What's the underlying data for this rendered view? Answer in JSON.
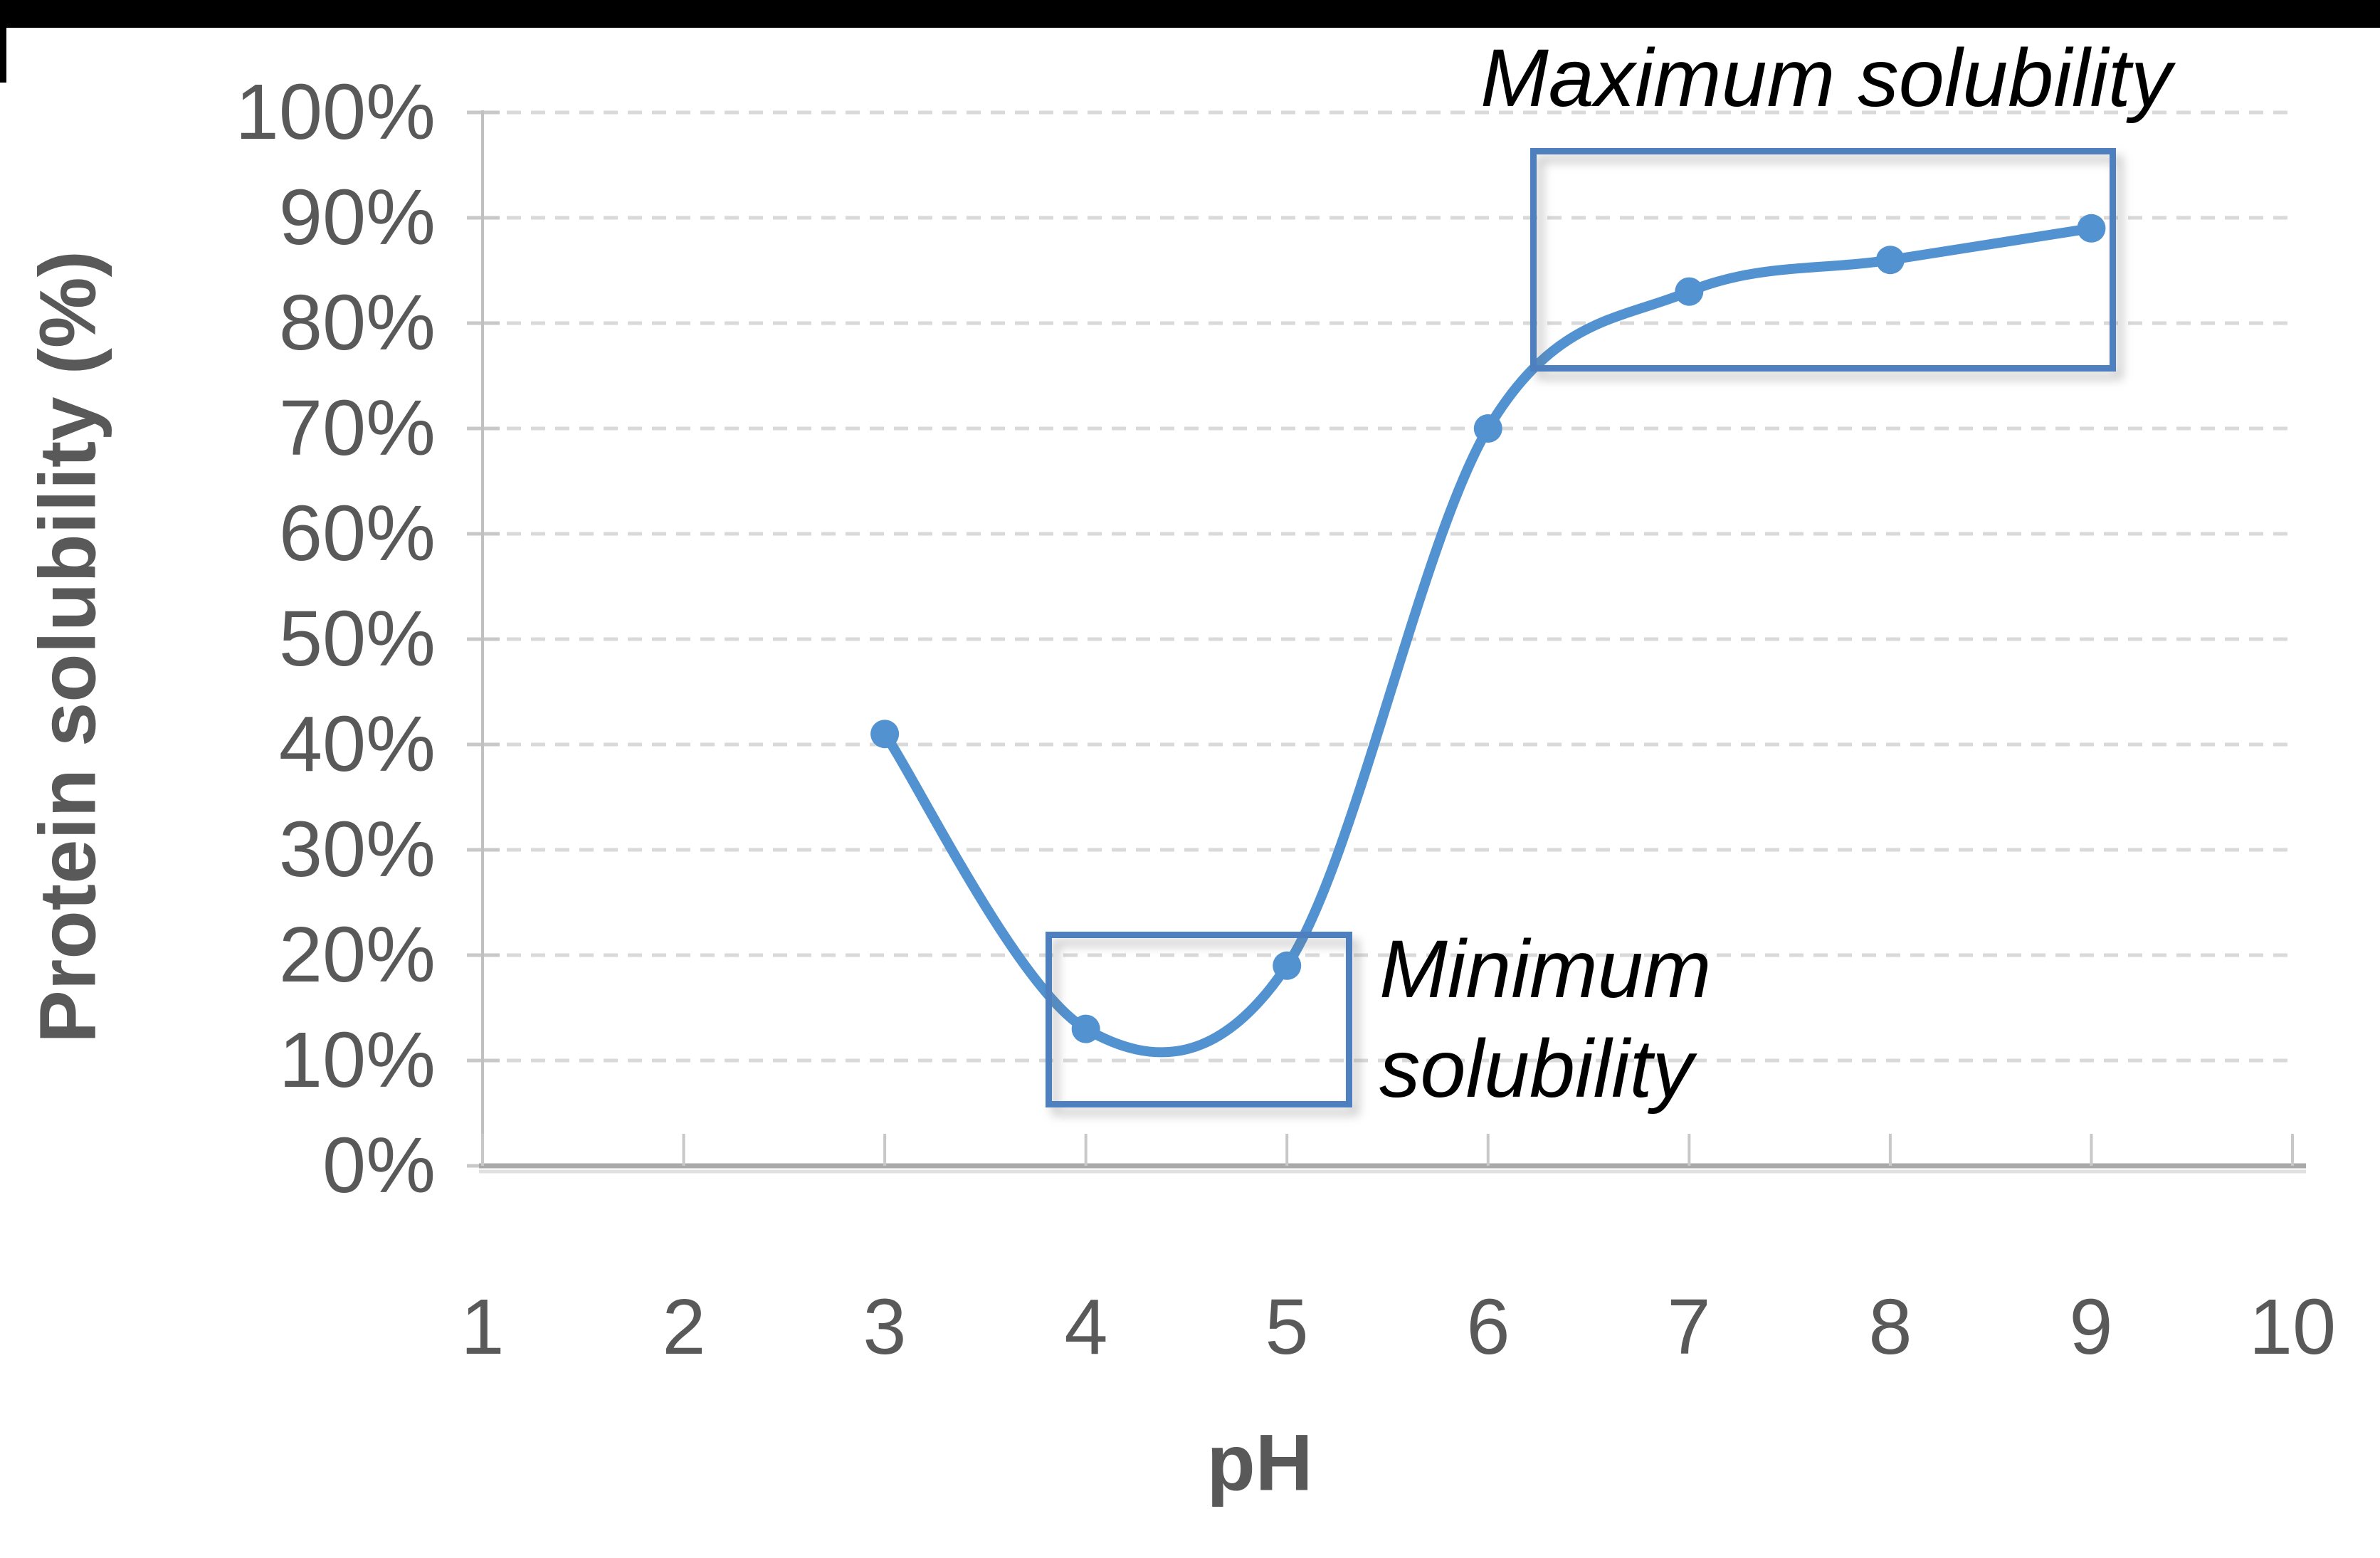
{
  "chart_data": {
    "type": "line",
    "title": "",
    "xlabel": "pH",
    "ylabel": "Protein solubility (%)",
    "x": [
      3,
      4,
      5,
      6,
      7,
      8,
      9
    ],
    "values": [
      41,
      13,
      19,
      70,
      83,
      86,
      89
    ],
    "xlim": [
      1,
      10
    ],
    "ylim": [
      0,
      100
    ],
    "x_tick_values": [
      1,
      2,
      3,
      4,
      5,
      6,
      7,
      8,
      9,
      10
    ],
    "x_tick_labels": [
      "1",
      "2",
      "3",
      "4",
      "5",
      "6",
      "7",
      "8",
      "9",
      "10"
    ],
    "y_tick_values": [
      0,
      10,
      20,
      30,
      40,
      50,
      60,
      70,
      80,
      90,
      100
    ],
    "y_tick_labels": [
      "0%",
      "10%",
      "20%",
      "30%",
      "40%",
      "50%",
      "60%",
      "70%",
      "80%",
      "90%",
      "100%"
    ],
    "grid": "horizontal-dashed",
    "legend": "none",
    "line_color": "#5292d0",
    "marker": "circle",
    "curve_smooth": true,
    "annotations": [
      {
        "id": "maximum",
        "label": "Maximum solubility",
        "box_ph_range": [
          6.21,
          9.06
        ],
        "box_pct_range": [
          76.6,
          96.6
        ],
        "box_color": "#4e7fbe"
      },
      {
        "id": "minimum",
        "label": "Minimum solubility",
        "box_ph_range": [
          3.8,
          5.26
        ],
        "box_pct_range": [
          6.7,
          22.2
        ],
        "box_color": "#4e7fbe"
      }
    ],
    "colors": {
      "tick_text": "#595959",
      "axis_line": "#a9a9a9",
      "y_axis_line": "#c0c0c0",
      "gridline": "#d9d9d9",
      "annotation_text": "#000000"
    }
  }
}
